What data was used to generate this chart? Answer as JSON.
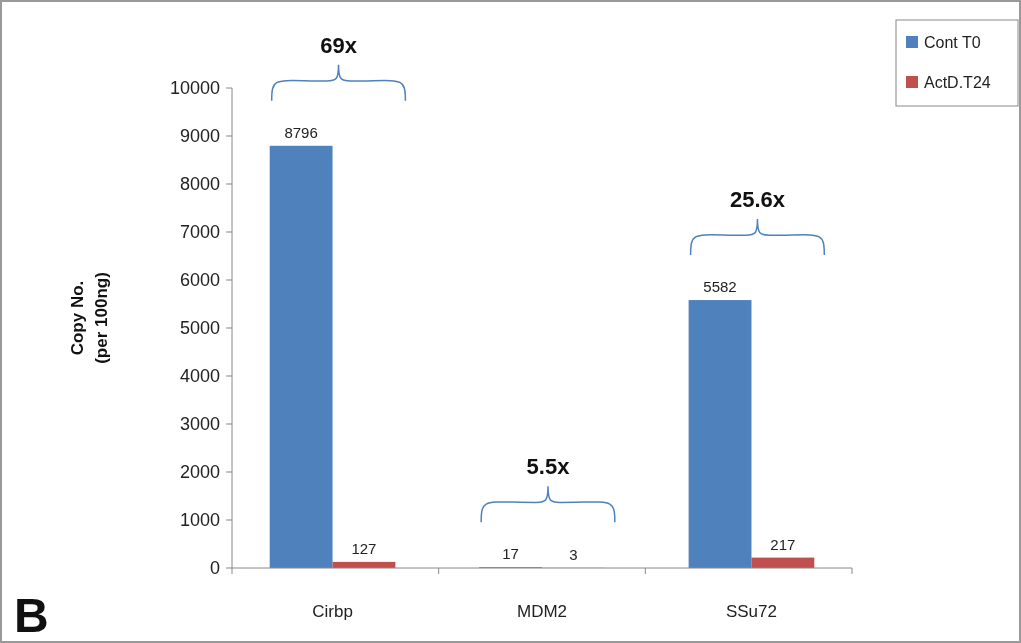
{
  "chart_data": {
    "type": "bar",
    "ylabel": "Copy No.\n(per 100ng)",
    "categories": [
      "Cirbp",
      "MDM2",
      "SSu72"
    ],
    "series": [
      {
        "name": "Cont T0",
        "color": "#4f81bd",
        "values": [
          8796,
          17,
          5582
        ]
      },
      {
        "name": "ActD.T24",
        "color": "#c0504d",
        "values": [
          127,
          3,
          217
        ]
      }
    ],
    "ylim": [
      0,
      10000
    ],
    "yticks": [
      0,
      1000,
      2000,
      3000,
      4000,
      5000,
      6000,
      7000,
      8000,
      9000,
      10000
    ],
    "data_labels": true,
    "grid": false,
    "legend": "top right",
    "annotations": [
      "69x",
      "5.5x",
      "25.6x",
      "B"
    ]
  }
}
